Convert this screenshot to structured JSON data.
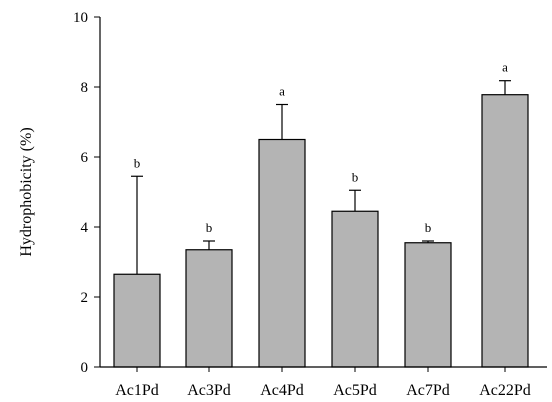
{
  "chart_data": {
    "type": "bar",
    "categories": [
      "Ac1Pd",
      "Ac3Pd",
      "Ac4Pd",
      "Ac5Pd",
      "Ac7Pd",
      "Ac22Pd"
    ],
    "values": [
      2.65,
      3.35,
      6.5,
      4.45,
      3.55,
      7.78
    ],
    "error_plus": [
      2.8,
      0.25,
      1.0,
      0.6,
      0.05,
      0.4
    ],
    "significance": [
      "b",
      "b",
      "a",
      "b",
      "b",
      "a"
    ],
    "ylabel": "Hydrophobicity (%)",
    "xlabel": "",
    "ylim": [
      0,
      10
    ],
    "yticks": [
      0,
      2,
      4,
      6,
      8,
      10
    ],
    "bar_color": "#b4b4b4",
    "edge_color": "#000000",
    "grid": false,
    "error_bars": "upper only"
  }
}
